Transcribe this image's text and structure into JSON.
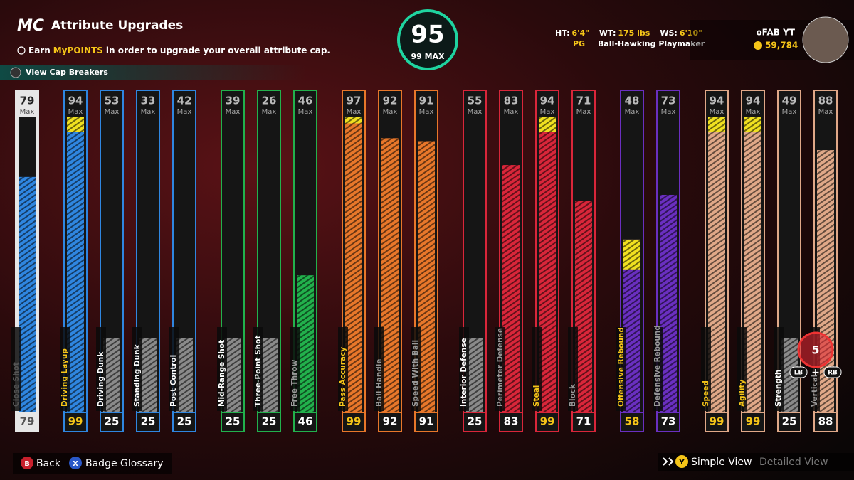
{
  "header": {
    "logo": "MC",
    "title": "Attribute Upgrades",
    "info_prefix": "Earn",
    "info_highlight": "MyPOINTS",
    "info_suffix": "in order to upgrade your overall attribute cap.",
    "cap_breakers": "View Cap Breakers"
  },
  "overall": {
    "value": 95,
    "cap_label": "99 MAX"
  },
  "player": {
    "height_label": "HT:",
    "height": "6'4\"",
    "weight_label": "WT:",
    "weight": "175 lbs",
    "wingspan_label": "WS:",
    "wingspan": "6'10\"",
    "position": "PG",
    "archetype": "Ball-Hawking Playmaker",
    "gamertag": "oFAB YT",
    "vc": "59,784"
  },
  "max_label": "Max",
  "groups": [
    {
      "color": "#2f86e0",
      "frame": "#e6e6e6",
      "attributes": [
        {
          "name": "Close Shot",
          "cap": 79,
          "value": 79
        }
      ]
    },
    {
      "color": "#2f86e0",
      "frame": "#2f86e0",
      "attributes": [
        {
          "name": "Driving Layup",
          "cap": 94,
          "value": 99
        },
        {
          "name": "Driving Dunk",
          "cap": 53,
          "value": 25
        },
        {
          "name": "Standing Dunk",
          "cap": 33,
          "value": 25
        },
        {
          "name": "Post Control",
          "cap": 42,
          "value": 25
        }
      ]
    },
    {
      "color": "#22b14c",
      "frame": "#22b14c",
      "attributes": [
        {
          "name": "Mid-Range Shot",
          "cap": 39,
          "value": 25
        },
        {
          "name": "Three-Point Shot",
          "cap": 26,
          "value": 25
        },
        {
          "name": "Free Throw",
          "cap": 46,
          "value": 46
        }
      ]
    },
    {
      "color": "#e8772a",
      "frame": "#e8772a",
      "attributes": [
        {
          "name": "Pass Accuracy",
          "cap": 97,
          "value": 99
        },
        {
          "name": "Ball Handle",
          "cap": 92,
          "value": 92
        },
        {
          "name": "Speed With Ball",
          "cap": 91,
          "value": 91
        }
      ]
    },
    {
      "color": "#d9263a",
      "frame": "#d9263a",
      "attributes": [
        {
          "name": "Interior Defense",
          "cap": 55,
          "value": 25
        },
        {
          "name": "Perimeter Defense",
          "cap": 83,
          "value": 83
        },
        {
          "name": "Steal",
          "cap": 94,
          "value": 99
        },
        {
          "name": "Block",
          "cap": 71,
          "value": 71
        }
      ]
    },
    {
      "color": "#6a2fc0",
      "frame": "#6a2fc0",
      "attributes": [
        {
          "name": "Offensive Rebound",
          "cap": 48,
          "value": 58
        },
        {
          "name": "Defensive Rebound",
          "cap": 73,
          "value": 73
        }
      ]
    },
    {
      "color": "#e0a888",
      "frame": "#e0a888",
      "attributes": [
        {
          "name": "Speed",
          "cap": 94,
          "value": 99
        },
        {
          "name": "Agility",
          "cap": 94,
          "value": 99
        },
        {
          "name": "Strength",
          "cap": 49,
          "value": 25
        },
        {
          "name": "Vertical",
          "cap": 88,
          "value": 88
        }
      ]
    }
  ],
  "controls": {
    "points": 5,
    "lb": "LB",
    "plus": "+",
    "rb": "RB",
    "back_button": "B",
    "back": "Back",
    "glossary_button": "X",
    "glossary": "Badge Glossary",
    "view_button": "Y",
    "simple_view": "Simple View",
    "detailed_view": "Detailed View"
  }
}
